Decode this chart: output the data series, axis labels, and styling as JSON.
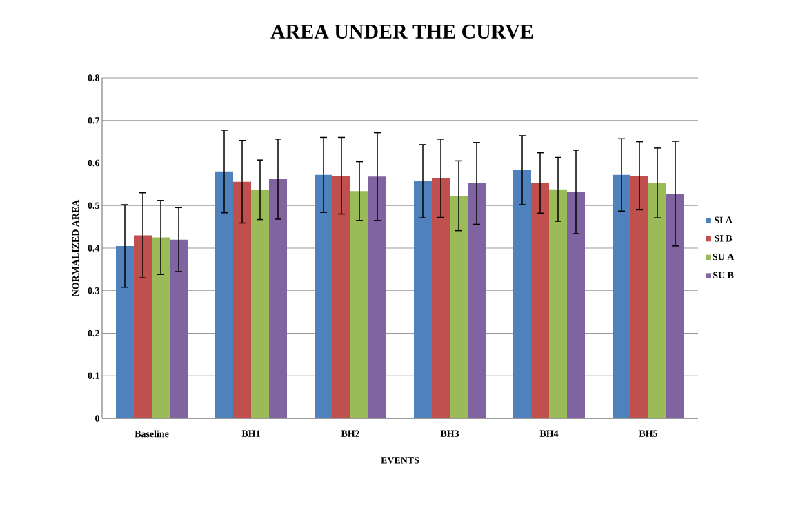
{
  "chart_data": {
    "type": "bar",
    "title": "AREA UNDER THE CURVE",
    "xlabel": "EVENTS",
    "ylabel": "NORMALIZED AREA",
    "categories": [
      "Baseline",
      "BH1",
      "BH2",
      "BH3",
      "BH4",
      "BH5"
    ],
    "series": [
      {
        "name": "SI A",
        "color": "#4f81bd",
        "values": [
          0.405,
          0.58,
          0.572,
          0.557,
          0.583,
          0.572
        ],
        "errors": [
          0.097,
          0.097,
          0.088,
          0.086,
          0.081,
          0.085
        ]
      },
      {
        "name": "SI B",
        "color": "#c0504d",
        "values": [
          0.43,
          0.556,
          0.57,
          0.564,
          0.553,
          0.57
        ],
        "errors": [
          0.1,
          0.097,
          0.09,
          0.092,
          0.071,
          0.08
        ]
      },
      {
        "name": "SU A",
        "color": "#9bbb59",
        "values": [
          0.425,
          0.537,
          0.534,
          0.523,
          0.538,
          0.553
        ],
        "errors": [
          0.087,
          0.07,
          0.069,
          0.082,
          0.075,
          0.082
        ]
      },
      {
        "name": "SU B",
        "color": "#8064a2",
        "values": [
          0.42,
          0.562,
          0.568,
          0.552,
          0.532,
          0.528
        ],
        "errors": [
          0.075,
          0.094,
          0.103,
          0.096,
          0.098,
          0.123
        ]
      }
    ],
    "ylim": [
      0,
      0.8
    ],
    "yticks": [
      0,
      0.1,
      0.2,
      0.3,
      0.4,
      0.5,
      0.6,
      0.7,
      0.8
    ],
    "grid": "y",
    "legend": "right"
  }
}
